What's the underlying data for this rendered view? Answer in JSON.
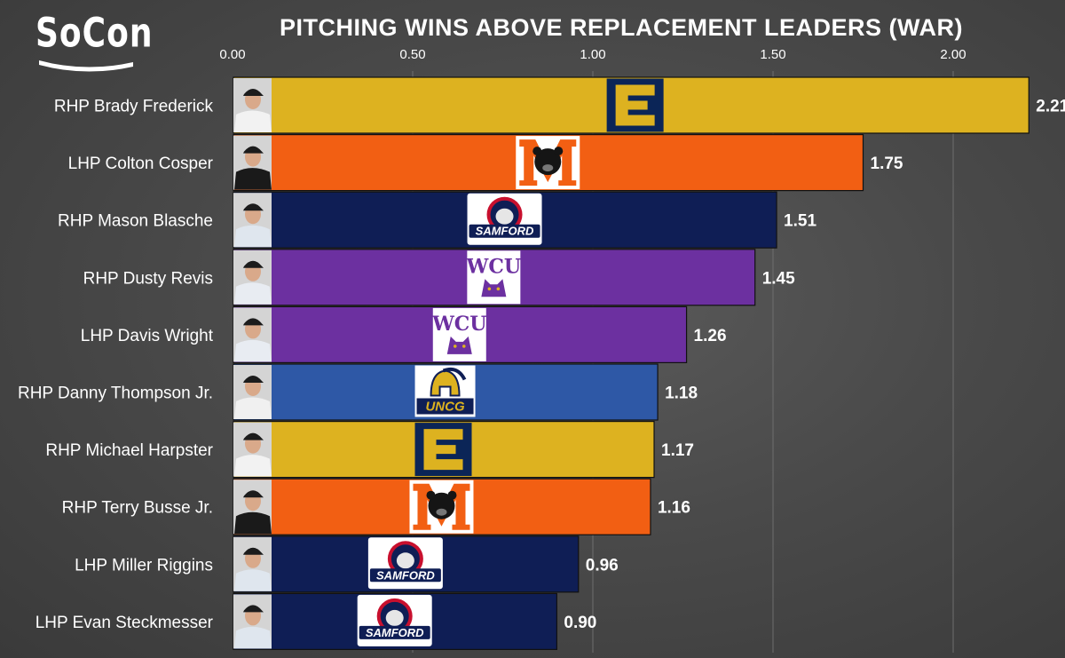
{
  "brand": {
    "logo_text": "SoCon"
  },
  "chart_data": {
    "type": "bar",
    "orientation": "horizontal",
    "title": "PITCHING WINS ABOVE REPLACEMENT LEADERS (WAR)",
    "xlabel": "",
    "ylabel": "",
    "xlim": [
      0,
      2.21
    ],
    "xticks": [
      0.0,
      0.5,
      1.0,
      1.5,
      2.0
    ],
    "xtick_labels": [
      "0.00",
      "0.50",
      "1.00",
      "1.50",
      "2.00"
    ],
    "grid": "vertical",
    "categories": [
      "RHP Brady Frederick",
      "LHP Colton Cosper",
      "RHP Mason Blasche",
      "RHP Dusty Revis",
      "LHP Davis Wright",
      "RHP Danny Thompson Jr.",
      "RHP Michael Harpster",
      "RHP Terry Busse Jr.",
      "LHP Miller Riggins",
      "LHP Evan Steckmesser"
    ],
    "values": [
      2.21,
      1.75,
      1.51,
      1.45,
      1.26,
      1.18,
      1.17,
      1.16,
      0.96,
      0.9
    ],
    "value_labels": [
      "2.21",
      "1.75",
      "1.51",
      "1.45",
      "1.26",
      "1.18",
      "1.17",
      "1.16",
      "0.96",
      "0.90"
    ],
    "bar_colors": [
      "#DDB220",
      "#F25F13",
      "#0F1E55",
      "#6C30A0",
      "#6C30A0",
      "#2E58A6",
      "#DDB220",
      "#F25F13",
      "#0F1E55",
      "#0F1E55"
    ],
    "team_logos": [
      "etsu-e-logo",
      "mercer-bear-logo",
      "samford-bulldog-logo",
      "wcu-catamount-logo",
      "wcu-catamount-logo",
      "uncg-spartan-logo",
      "etsu-e-logo",
      "mercer-bear-logo",
      "samford-bulldog-logo",
      "samford-bulldog-logo"
    ],
    "logo_texts": [
      "",
      "",
      "SAMFORD",
      "WCU",
      "WCU",
      "UNCG",
      "",
      "",
      "SAMFORD",
      "SAMFORD"
    ]
  }
}
